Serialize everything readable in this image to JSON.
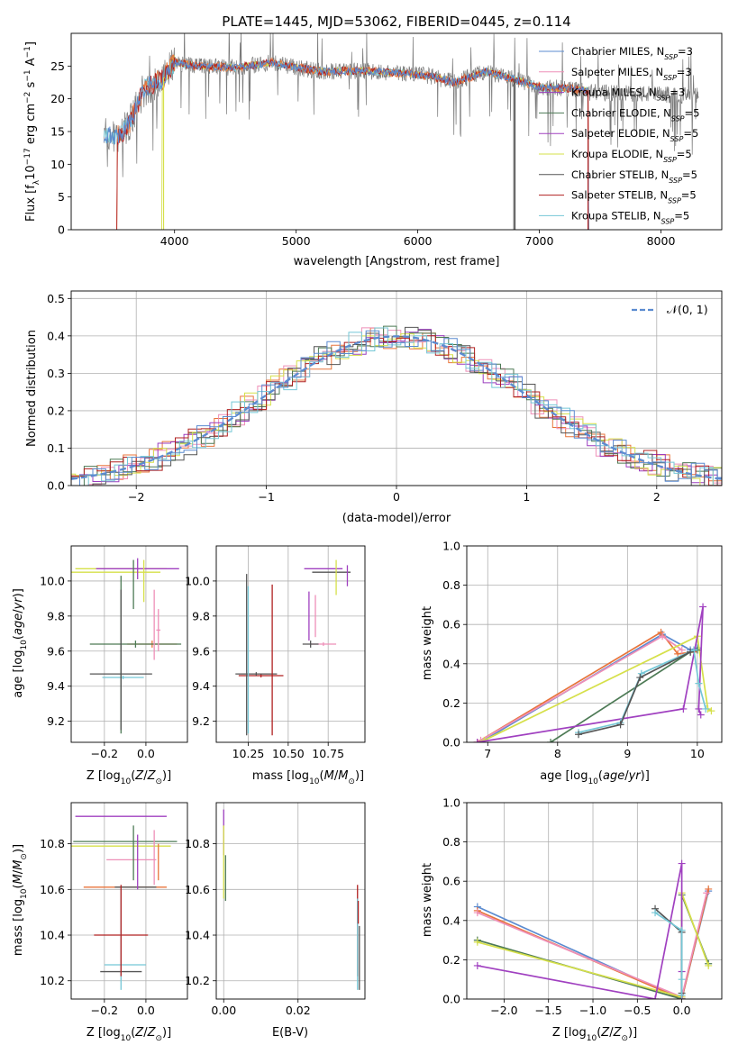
{
  "figure": {
    "title": "PLATE=1445, MJD=53062, FIBERID=0445, z=0.114"
  },
  "colors": {
    "chabrier_miles": "#5b8bd0",
    "salpeter_miles": "#ee8fb8",
    "kroupa_miles": "#9b3dbf",
    "chabrier_elodie": "#4d7a55",
    "salpeter_elodie": "#a040c0",
    "kroupa_elodie": "#d6e04a",
    "chabrier_stelib": "#555555",
    "salpeter_stelib": "#b02020",
    "kroupa_stelib": "#74c7d6",
    "orange_model": "#e8743b",
    "gaussian": "#5b8bd0"
  },
  "chart_data": [
    {
      "type": "line",
      "name": "spectrum",
      "xlabel": "wavelength [Angstrom, rest frame]",
      "ylabel": "Flux [f_λ10^-17 erg cm^-2 s^-1 A^-1]",
      "xlim": [
        3150,
        8500
      ],
      "ylim": [
        0,
        30
      ],
      "xticks": [
        4000,
        5000,
        6000,
        7000,
        8000
      ],
      "yticks": [
        0,
        5,
        10,
        15,
        20,
        25
      ],
      "legend_position": "top-right",
      "legend": [
        "Chabrier MILES, N_SSP=3",
        "Salpeter MILES, N_SSP=3",
        "Kroupa MILES, N_SSP=3",
        "Chabrier ELODIE, N_SSP=5",
        "Salpeter ELODIE, N_SSP=5",
        "Kroupa ELODIE, N_SSP=5",
        "Chabrier STELIB, N_SSP=5",
        "Salpeter STELIB, N_SSP=5",
        "Kroupa STELIB, N_SSP=5"
      ],
      "continuum_knots": [
        [
          3420,
          14.5
        ],
        [
          3550,
          14.2
        ],
        [
          3650,
          17.0
        ],
        [
          3750,
          21.5
        ],
        [
          3900,
          23.0
        ],
        [
          4000,
          25.5
        ],
        [
          4200,
          25.0
        ],
        [
          4500,
          24.8
        ],
        [
          4800,
          25.5
        ],
        [
          5000,
          24.8
        ],
        [
          5200,
          24.2
        ],
        [
          5500,
          24.3
        ],
        [
          5800,
          24.0
        ],
        [
          6100,
          23.5
        ],
        [
          6300,
          22.5
        ],
        [
          6560,
          24.2
        ],
        [
          6700,
          23.5
        ],
        [
          7000,
          21.8
        ],
        [
          7200,
          21.6
        ],
        [
          7400,
          21.3
        ]
      ]
    },
    {
      "type": "bar",
      "name": "residual_histogram",
      "xlabel": "(data-model)/error",
      "ylabel": "Normed distribution",
      "xlim": [
        -2.5,
        2.5
      ],
      "ylim": [
        0,
        0.52
      ],
      "xticks": [
        -2,
        -1,
        0,
        1,
        2
      ],
      "yticks": [
        0.0,
        0.1,
        0.2,
        0.3,
        0.4,
        0.5
      ],
      "legend": [
        "𝒩(0, 1)"
      ],
      "legend_position": "top-right",
      "bin_width": 0.1
    },
    {
      "type": "scatter",
      "name": "age_vs_Z",
      "xlabel": "Z [log10(Z/Z⊙)]",
      "ylabel": "age [log10(age/yr)]",
      "xlim": [
        -0.36,
        0.2
      ],
      "ylim": [
        9.08,
        10.2
      ],
      "xticks": [
        -0.2,
        0.0
      ],
      "yticks": [
        9.2,
        9.4,
        9.6,
        9.8,
        10.0
      ]
    },
    {
      "type": "scatter",
      "name": "age_vs_mass",
      "xlabel": "mass [log10(M/M⊙)]",
      "xlim": [
        10.05,
        10.98
      ],
      "ylim": [
        9.08,
        10.2
      ],
      "xticks": [
        10.25,
        10.5,
        10.75
      ],
      "yticks": [
        9.2,
        9.4,
        9.6,
        9.8,
        10.0
      ]
    },
    {
      "type": "line",
      "name": "massweight_vs_age",
      "xlabel": "age [log10(age/yr)]",
      "ylabel": "mass weight",
      "xlim": [
        6.7,
        10.35
      ],
      "ylim": [
        0,
        1.0
      ],
      "xticks": [
        7,
        8,
        9,
        10
      ],
      "yticks": [
        0.0,
        0.2,
        0.4,
        0.6,
        0.8,
        1.0
      ]
    },
    {
      "type": "scatter",
      "name": "mass_vs_Z",
      "xlabel": "Z [log10(Z/Z⊙)]",
      "ylabel": "mass [log10(M/M⊙)]",
      "xlim": [
        -0.36,
        0.2
      ],
      "ylim": [
        10.12,
        10.98
      ],
      "xticks": [
        -0.2,
        0.0
      ],
      "yticks": [
        10.2,
        10.4,
        10.6,
        10.8
      ]
    },
    {
      "type": "scatter",
      "name": "mass_vs_ebv",
      "xlabel": "E(B-V)",
      "xlim": [
        -0.002,
        0.038
      ],
      "ylim": [
        10.12,
        10.98
      ],
      "xticks": [
        0.0,
        0.02
      ],
      "yticks": [
        10.2,
        10.4,
        10.6,
        10.8
      ]
    },
    {
      "type": "line",
      "name": "massweight_vs_Z",
      "xlabel": "Z [log10(Z/Z⊙)]",
      "ylabel": "mass weight",
      "xlim": [
        -2.42,
        0.45
      ],
      "ylim": [
        0,
        1.0
      ],
      "xticks": [
        -2.0,
        -1.5,
        -1.0,
        -0.5,
        0.0
      ],
      "yticks": [
        0.0,
        0.2,
        0.4,
        0.6,
        0.8,
        1.0
      ]
    }
  ]
}
